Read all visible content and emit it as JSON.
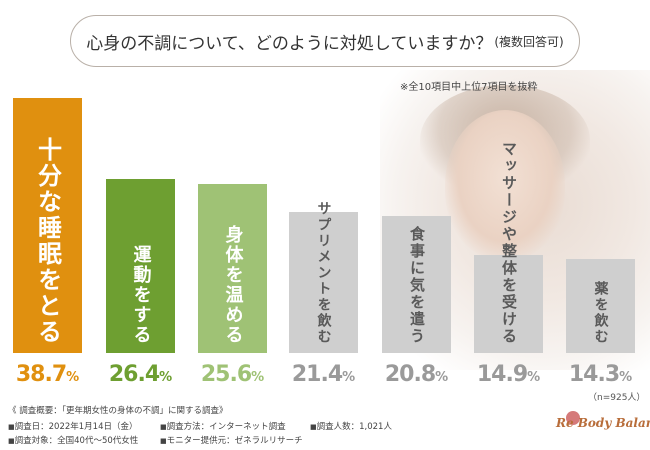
{
  "title": {
    "main": "心身の不調について、どのように対処していますか？",
    "sub": "(複数回答可)"
  },
  "note": "※全10項目中上位7項目を抜粋",
  "chart_data": {
    "type": "bar",
    "categories": [
      "十分な睡眠をとる",
      "運動をする",
      "身体を温める",
      "サプリメントを飲む",
      "食事に気を遣う",
      "マッサージや整体を受ける",
      "薬を飲む"
    ],
    "values": [
      38.7,
      26.4,
      25.6,
      21.4,
      20.8,
      14.9,
      14.3
    ],
    "unit": "%",
    "colors": [
      "#e0900f",
      "#6e9f31",
      "#9fc275",
      "#cfcfcf",
      "#cfcfcf",
      "#cfcfcf",
      "#cfcfcf"
    ],
    "value_colors": [
      "#e0900f",
      "#6e9f31",
      "#9fc275",
      "#9a9a9a",
      "#9a9a9a",
      "#9a9a9a",
      "#9a9a9a"
    ],
    "display_values": [
      "38.7",
      "26.4",
      "25.6",
      "21.4",
      "20.8",
      "14.9",
      "14.3"
    ],
    "ylim": [
      0,
      40
    ],
    "n_note": "（n=925人）"
  },
  "footer": {
    "heading": "《 調査概要：「更年期女性の身体の不調」に関する調査》",
    "date": "調査日：2022年1月14日（金）",
    "method": "調査方法：インターネット調査",
    "count": "調査人数：1,021人",
    "target": "調査対象：全国40代～50代女性",
    "provider": "モニター提供元：ゼネラルリサーチ"
  },
  "logo": "Re Body Balance"
}
